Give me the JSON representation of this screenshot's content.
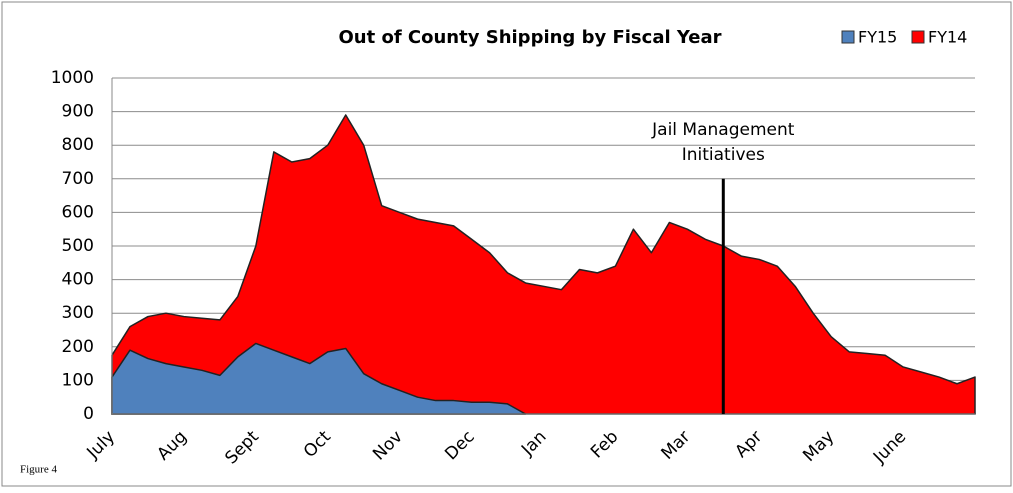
{
  "chart_data": {
    "type": "area",
    "title": "Out of County Shipping by Fiscal Year",
    "categories": [
      "July",
      null,
      null,
      null,
      "Aug",
      null,
      null,
      null,
      "Sept",
      null,
      null,
      null,
      "Oct",
      null,
      null,
      null,
      "Nov",
      null,
      null,
      null,
      "Dec",
      null,
      null,
      null,
      "Jan",
      null,
      null,
      null,
      "Feb",
      null,
      null,
      null,
      "Mar",
      null,
      null,
      null,
      "Apr",
      null,
      null,
      null,
      "May",
      null,
      null,
      null,
      "June",
      null,
      null,
      null,
      null
    ],
    "series": [
      {
        "name": "FY15",
        "color": "#4f81bd",
        "values": [
          110,
          190,
          165,
          150,
          140,
          130,
          115,
          170,
          210,
          190,
          170,
          150,
          185,
          195,
          120,
          90,
          70,
          50,
          40,
          40,
          35,
          35,
          30,
          0,
          null,
          null,
          null,
          null,
          null,
          null,
          null,
          null,
          null,
          null,
          null,
          null,
          null,
          null,
          null,
          null,
          null,
          null,
          null,
          null,
          null,
          null,
          null,
          null,
          null
        ]
      },
      {
        "name": "FY14",
        "color": "#ff0000",
        "values": [
          175,
          260,
          290,
          300,
          290,
          285,
          280,
          350,
          500,
          780,
          750,
          760,
          800,
          890,
          800,
          620,
          600,
          580,
          570,
          560,
          520,
          480,
          420,
          390,
          380,
          370,
          430,
          420,
          440,
          550,
          480,
          570,
          550,
          520,
          500,
          470,
          460,
          440,
          380,
          300,
          230,
          185,
          180,
          175,
          140,
          125,
          110,
          90,
          110
        ]
      }
    ],
    "ylim": [
      0,
      1000
    ],
    "yticks": [
      0,
      100,
      200,
      300,
      400,
      500,
      600,
      700,
      800,
      900,
      1000
    ],
    "grid": true,
    "legend": "top-right",
    "annotation": [
      "Jail Management",
      "Initiatives"
    ],
    "figure_label": "Figure 4"
  }
}
